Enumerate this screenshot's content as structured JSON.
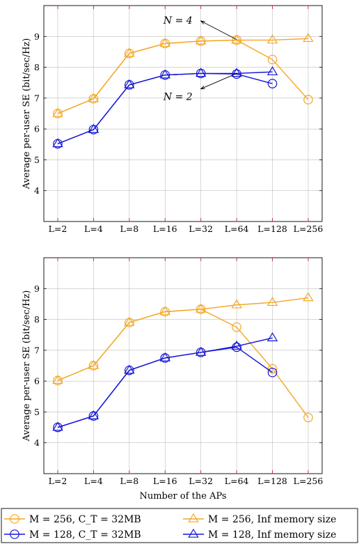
{
  "chart_data": [
    {
      "type": "line",
      "categories": [
        "L=2",
        "L=4",
        "L=8",
        "L=16",
        "L=32",
        "L=64",
        "L=128",
        "L=256"
      ],
      "ylabel": "Average per-user SE (bit/sec/Hz)",
      "xlabel": "",
      "ylim": [
        3,
        10
      ],
      "yticks": [
        4,
        5,
        6,
        7,
        8,
        9
      ],
      "grid": true,
      "series": [
        {
          "key": "s256T",
          "values": [
            6.5,
            6.98,
            8.45,
            8.77,
            8.85,
            8.88,
            8.88,
            8.93
          ],
          "color": "#F5A623",
          "marker": "triangle"
        },
        {
          "key": "s256C",
          "values": [
            6.5,
            6.98,
            8.45,
            8.77,
            8.85,
            8.88,
            8.25,
            6.95
          ],
          "color": "#F5A623",
          "marker": "circle"
        },
        {
          "key": "s128T",
          "values": [
            5.52,
            5.98,
            7.43,
            7.75,
            7.8,
            7.8,
            7.85,
            null
          ],
          "color": "#1515D8",
          "marker": "triangle"
        },
        {
          "key": "s128C",
          "values": [
            5.52,
            5.98,
            7.43,
            7.75,
            7.8,
            7.78,
            7.47,
            null
          ],
          "color": "#1515D8",
          "marker": "circle"
        }
      ],
      "annotations": [
        {
          "text": "N = 4",
          "arrow_from_cat": 4,
          "arrow_from_y": 9.5,
          "arrow_to_cat": 5,
          "arrow_to_y": 8.9
        },
        {
          "text": "N = 2",
          "arrow_from_cat": 4,
          "arrow_from_y": 7.3,
          "arrow_to_cat": 5,
          "arrow_to_y": 7.8
        }
      ]
    },
    {
      "type": "line",
      "categories": [
        "L=2",
        "L=4",
        "L=8",
        "L=16",
        "L=32",
        "L=64",
        "L=128",
        "L=256"
      ],
      "ylabel": "Average per-user SE (bit/sec/Hz)",
      "xlabel": "Number of the APs",
      "ylim": [
        3,
        10
      ],
      "yticks": [
        4,
        5,
        6,
        7,
        8,
        9
      ],
      "grid": true,
      "series": [
        {
          "key": "s256T",
          "values": [
            6.02,
            6.5,
            7.9,
            8.25,
            8.33,
            8.47,
            8.55,
            8.7
          ],
          "color": "#F5A623",
          "marker": "triangle"
        },
        {
          "key": "s256C",
          "values": [
            6.02,
            6.5,
            7.9,
            8.25,
            8.33,
            7.75,
            6.4,
            4.82
          ],
          "color": "#F5A623",
          "marker": "circle"
        },
        {
          "key": "s128T",
          "values": [
            4.5,
            4.87,
            6.35,
            6.75,
            6.93,
            7.13,
            7.4,
            null
          ],
          "color": "#1515D8",
          "marker": "triangle"
        },
        {
          "key": "s128C",
          "values": [
            4.5,
            4.87,
            6.35,
            6.75,
            6.93,
            7.1,
            6.28,
            null
          ],
          "color": "#1515D8",
          "marker": "circle"
        }
      ],
      "annotations": []
    }
  ],
  "legend": {
    "entries": [
      {
        "series_key": "s256C",
        "text": "M = 256, C_T = 32MB",
        "color": "#F5A623",
        "marker": "circle"
      },
      {
        "series_key": "s256T",
        "text": "M = 256, Inf memory size",
        "color": "#F5A623",
        "marker": "triangle"
      },
      {
        "series_key": "s128C",
        "text": "M = 128, C_T = 32MB",
        "color": "#1515D8",
        "marker": "circle"
      },
      {
        "series_key": "s128T",
        "text": "M = 128, Inf memory size",
        "color": "#1515D8",
        "marker": "triangle"
      }
    ]
  }
}
